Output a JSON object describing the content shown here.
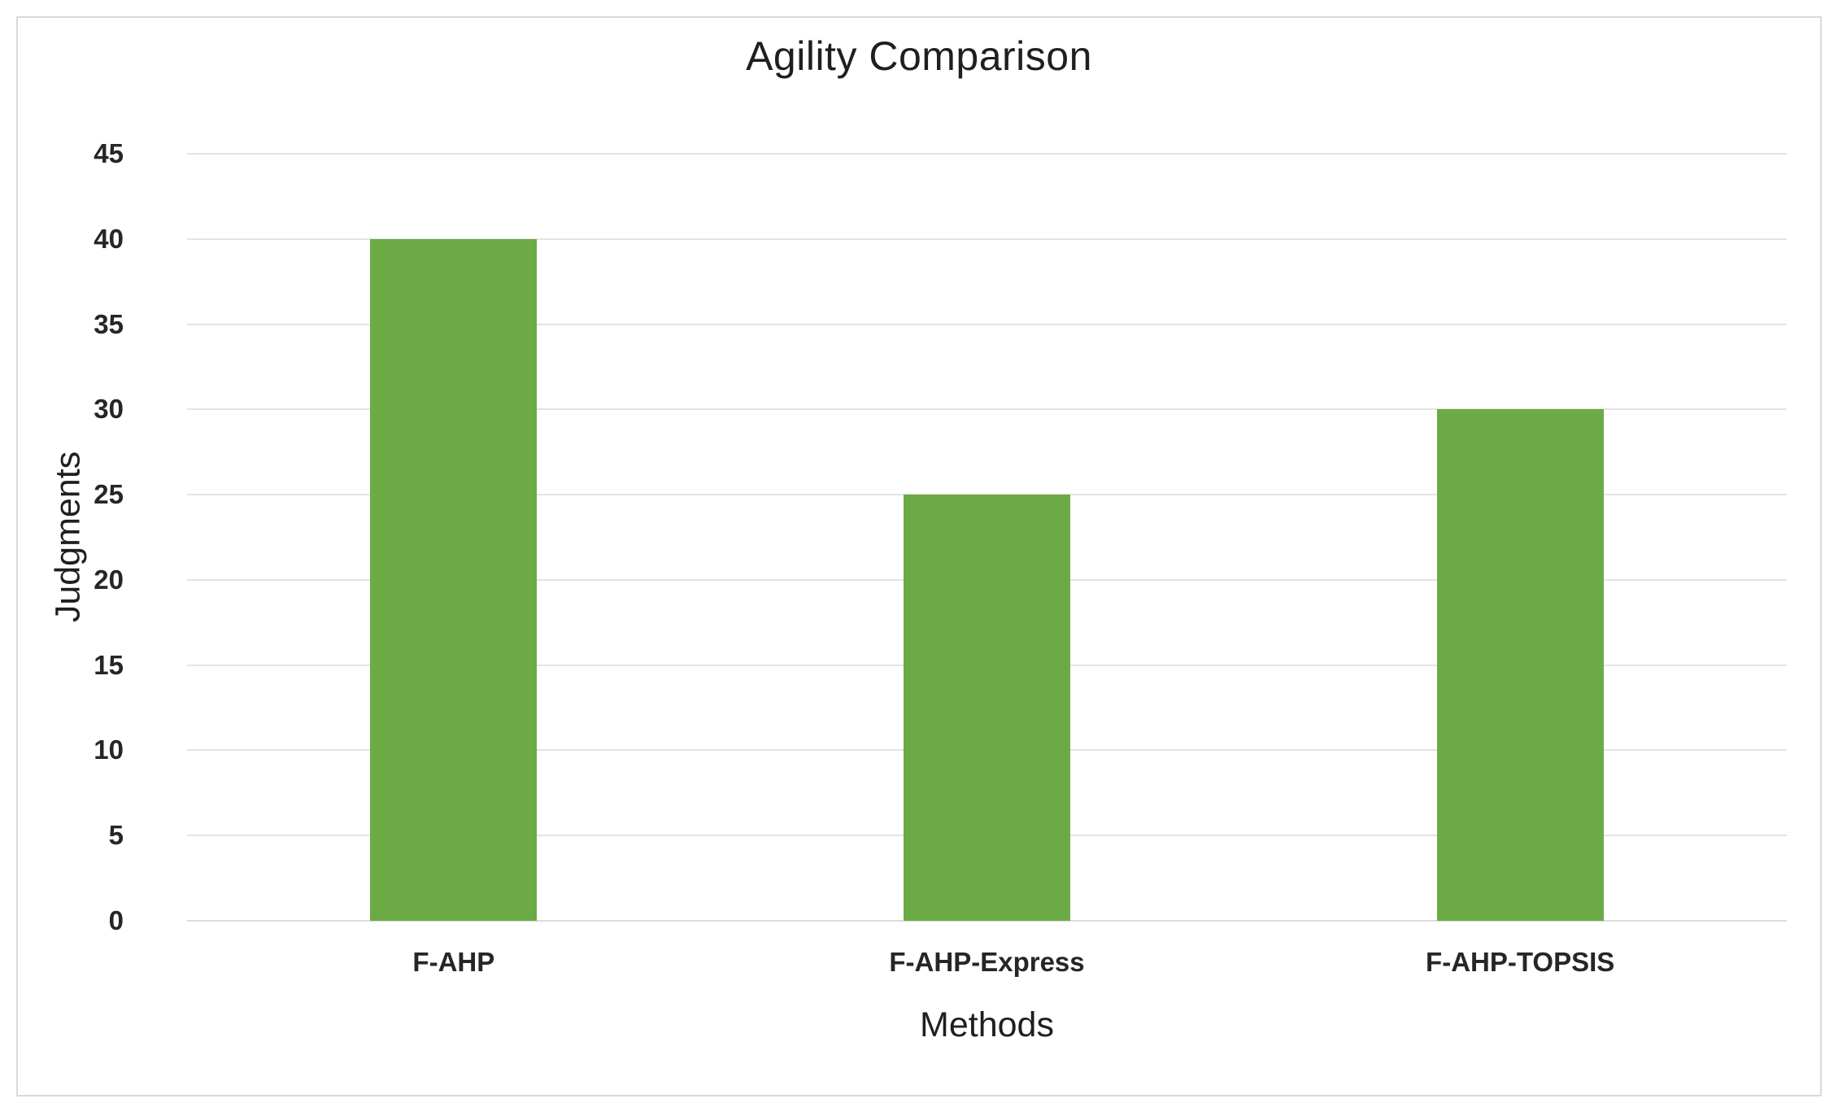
{
  "chart_data": {
    "type": "bar",
    "title": "Agility Comparison",
    "xlabel": "Methods",
    "ylabel": "Judgments",
    "categories": [
      "F-AHP",
      "F-AHP-Express",
      "F-AHP-TOPSIS"
    ],
    "values": [
      40,
      25,
      30
    ],
    "ylim": [
      0,
      45
    ],
    "ytick_step": 5,
    "grid": true,
    "legend_position": "none",
    "bar_color": "#6caa46",
    "gridline_color": "#e4e4e4",
    "axis_line_color": "#dcdcdc",
    "frame_border_color": "#d9d9d9",
    "text_color": "#1f1f1f",
    "background_color": "#ffffff"
  }
}
